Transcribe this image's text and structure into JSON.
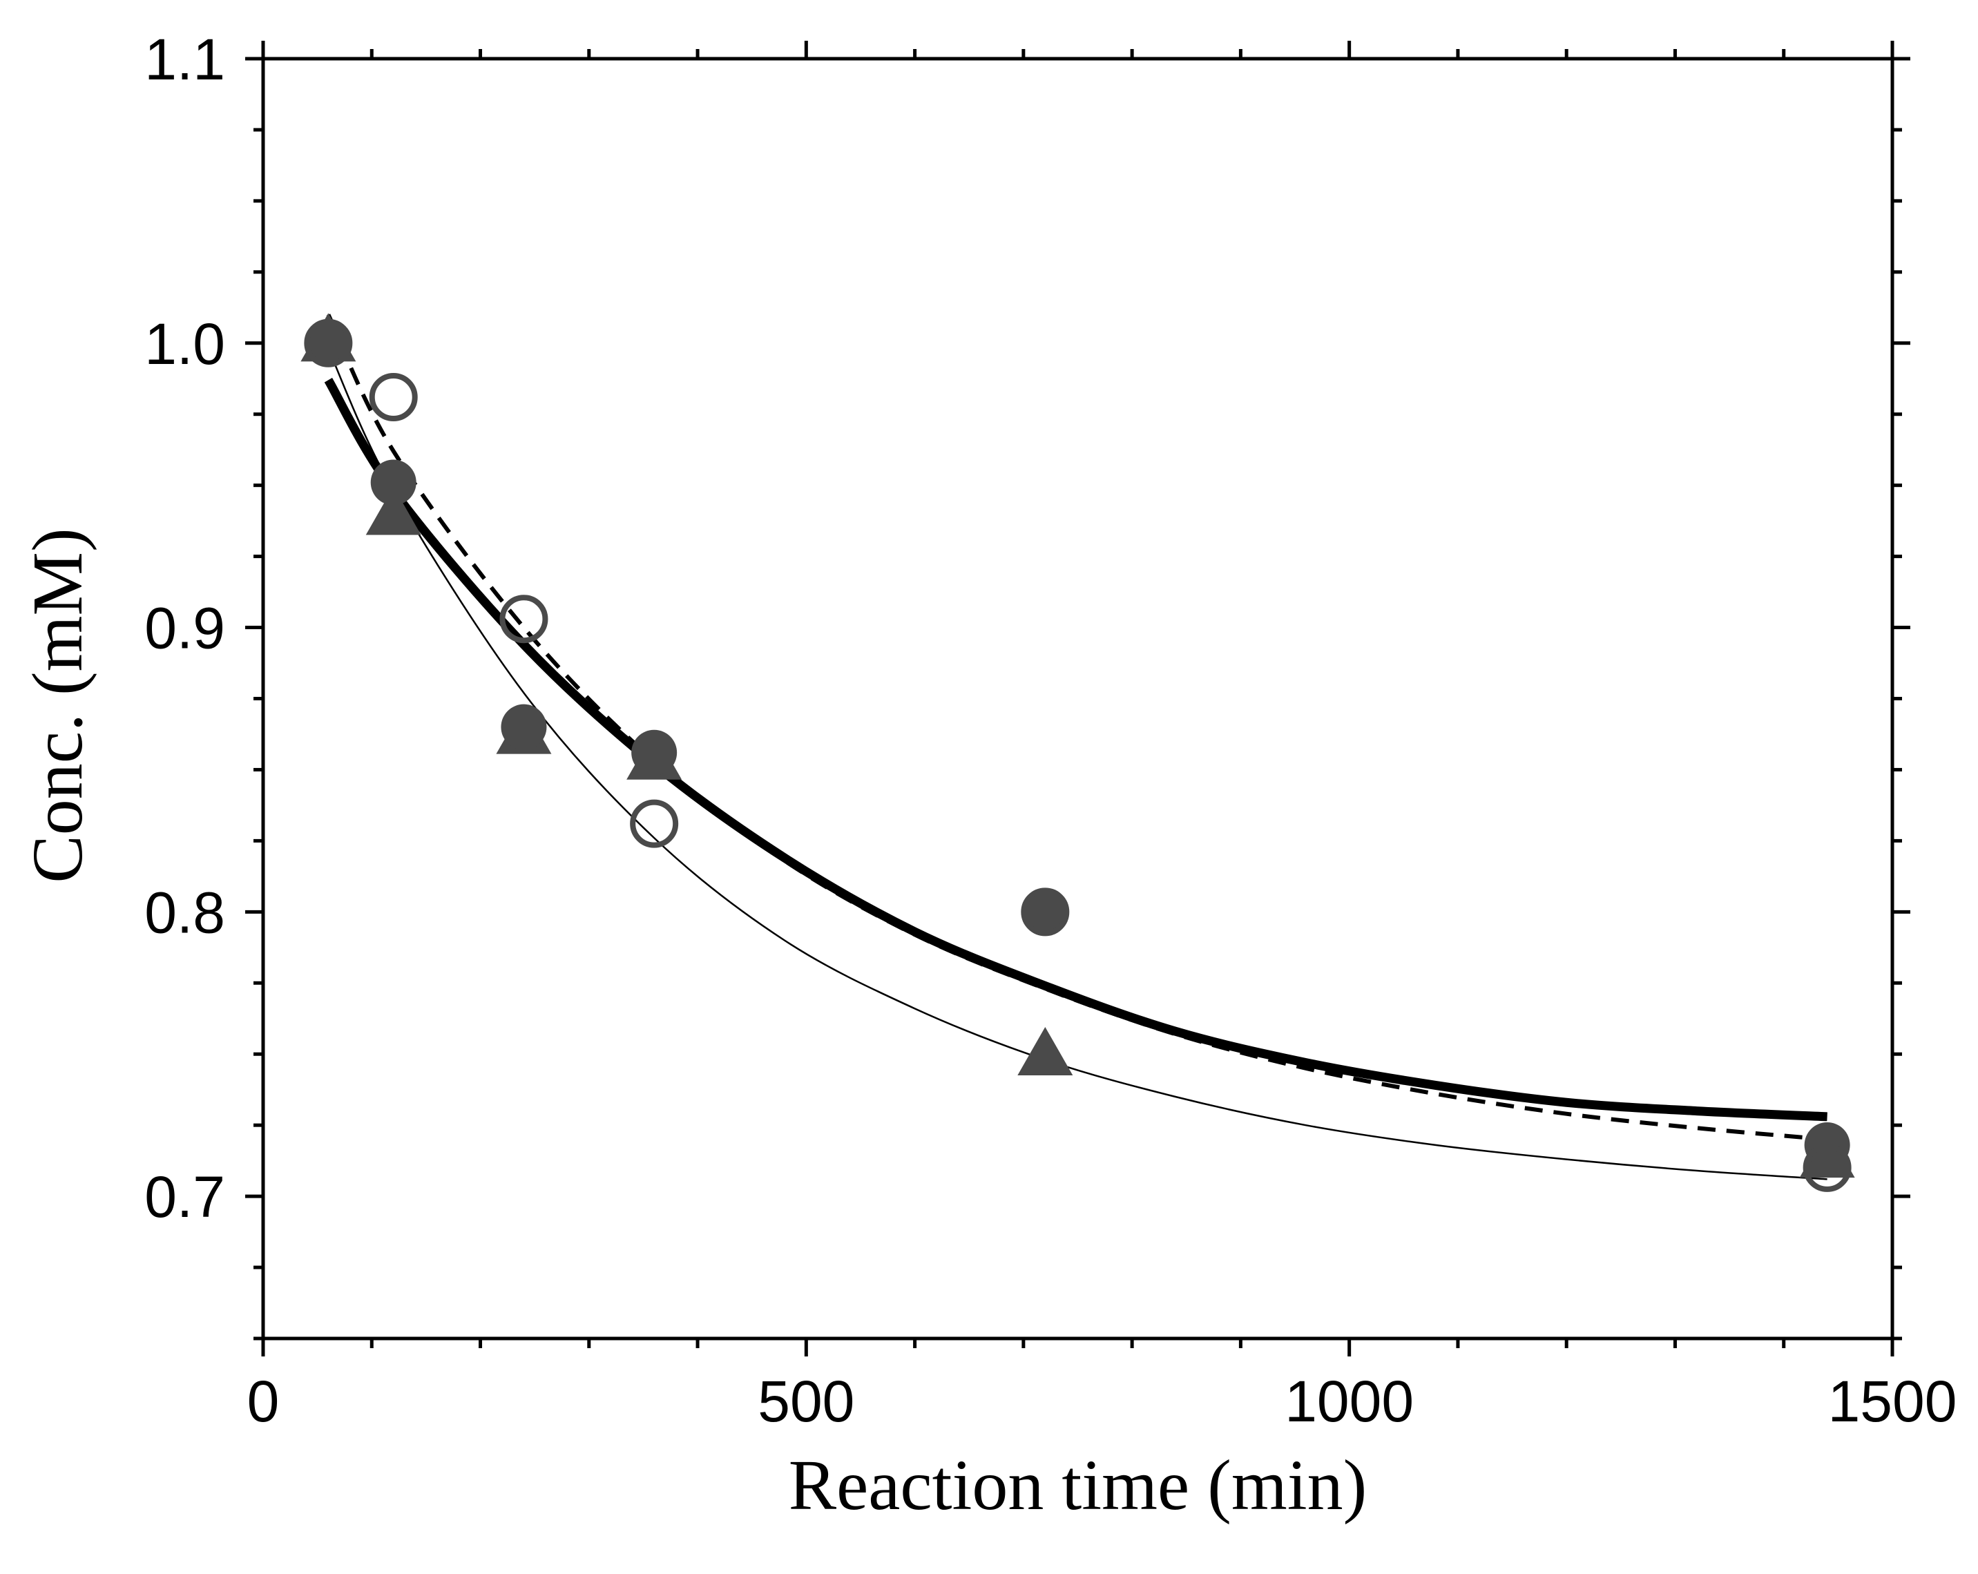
{
  "chart_data": {
    "type": "scatter",
    "title": "",
    "xlabel": "Reaction time (min)",
    "ylabel": "Conc. (mM)",
    "xlim": [
      0,
      1500
    ],
    "ylim": [
      0.65,
      1.1
    ],
    "grid": false,
    "legend": "none",
    "x_ticks": [
      0,
      500,
      1000,
      1500
    ],
    "x_tick_labels": [
      "0",
      "500",
      "1000",
      "1500"
    ],
    "y_ticks": [
      0.7,
      0.8,
      0.9,
      1.0,
      1.1
    ],
    "y_tick_labels": [
      "0.7",
      "0.8",
      "0.9",
      "1.0",
      "1.1"
    ],
    "series": [
      {
        "name": "filled circles",
        "marker": "filled-circle",
        "color": "#4a4a4a",
        "x": [
          60,
          120,
          240,
          360,
          720,
          1440
        ],
        "y": [
          1.0,
          0.951,
          0.865,
          0.856,
          0.8,
          0.718
        ]
      },
      {
        "name": "filled triangles",
        "marker": "filled-triangle",
        "color": "#4a4a4a",
        "x": [
          60,
          120,
          240,
          360,
          720,
          1440
        ],
        "y": [
          1.0,
          0.939,
          0.862,
          0.853,
          0.749,
          0.713
        ]
      },
      {
        "name": "open circles",
        "marker": "open-circle",
        "color": "#4a4a4a",
        "x": [
          60,
          120,
          240,
          360,
          720,
          1440
        ],
        "y": [
          1.0,
          0.981,
          0.903,
          0.831,
          0.8,
          0.71
        ]
      }
    ],
    "fits": [
      {
        "name": "fit thick solid",
        "style": "solid",
        "color": "#000000",
        "x": [
          60,
          120,
          240,
          360,
          480,
          600,
          720,
          840,
          960,
          1080,
          1200,
          1320,
          1440
        ],
        "y": [
          0.987,
          0.948,
          0.894,
          0.852,
          0.819,
          0.793,
          0.774,
          0.758,
          0.747,
          0.739,
          0.733,
          0.73,
          0.728
        ]
      },
      {
        "name": "fit dashed",
        "style": "dashed",
        "color": "#000000",
        "x": [
          60,
          120,
          240,
          360,
          480,
          600,
          720,
          840,
          960,
          1080,
          1200,
          1320,
          1440
        ],
        "y": [
          1.01,
          0.962,
          0.9,
          0.853,
          0.818,
          0.792,
          0.773,
          0.757,
          0.745,
          0.736,
          0.729,
          0.724,
          0.72
        ]
      },
      {
        "name": "fit thin solid",
        "style": "thin",
        "color": "#000000",
        "x": [
          60,
          120,
          240,
          360,
          480,
          600,
          720,
          840,
          960,
          1080,
          1200,
          1320,
          1440
        ],
        "y": [
          0.998,
          0.948,
          0.877,
          0.826,
          0.79,
          0.766,
          0.748,
          0.735,
          0.725,
          0.718,
          0.713,
          0.709,
          0.706
        ]
      }
    ]
  }
}
